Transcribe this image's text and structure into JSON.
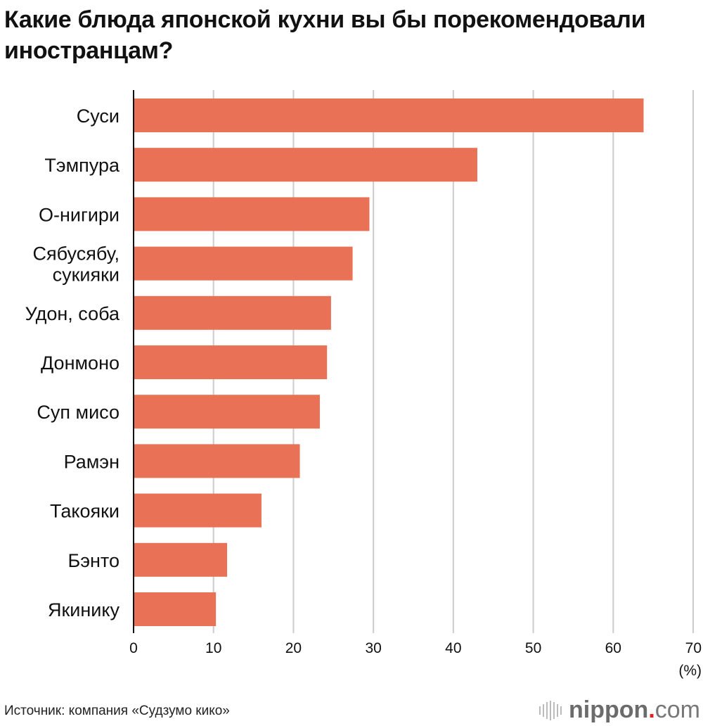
{
  "title": "Какие блюда японской кухни вы бы порекомендовали иностранцам?",
  "source": "Источник: компания «Судзумо кико»",
  "logo": {
    "text": "nippon",
    "dot": ".",
    "suffix": "com"
  },
  "chart_data": {
    "type": "bar",
    "orientation": "horizontal",
    "title": "Какие блюда японской кухни вы бы порекомендовали иностранцам?",
    "categories": [
      "Суси",
      "Тэмпура",
      "О-нигири",
      "Сябусябу,\nсукияки",
      "Удон, соба",
      "Донмоно",
      "Суп мисо",
      "Рамэн",
      "Такояки",
      "Бэнто",
      "Якинику"
    ],
    "values": [
      63.8,
      43.0,
      29.5,
      27.4,
      24.7,
      24.2,
      23.3,
      20.8,
      16.0,
      11.7,
      10.3
    ],
    "xlim": [
      0,
      70
    ],
    "xticks": [
      "0",
      "10",
      "20",
      "30",
      "40",
      "50",
      "60",
      "70"
    ],
    "xunit": "(%)",
    "grid": true,
    "bar_color": "#e87156",
    "grid_color": "#cccccc"
  }
}
